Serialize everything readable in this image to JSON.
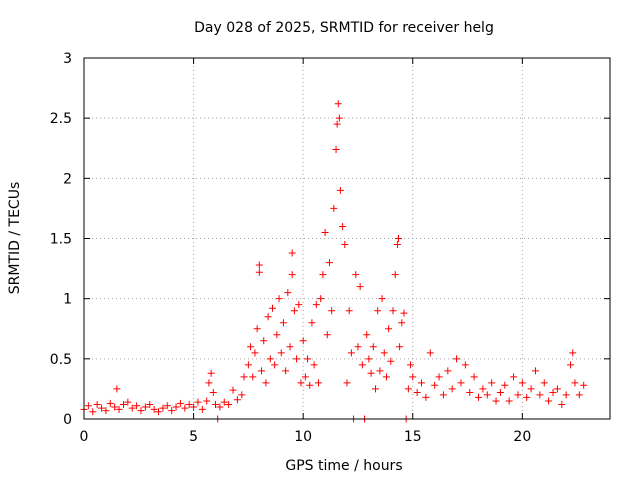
{
  "chart_data": {
    "type": "scatter",
    "title": "Day 028 of 2025, SRMTID for receiver helg",
    "xlabel": "GPS time / hours",
    "ylabel": "SRMTID / TECUs",
    "xlim": [
      0,
      24
    ],
    "ylim": [
      0,
      3
    ],
    "xticks": [
      0,
      5,
      10,
      15,
      20
    ],
    "xtick_labels": [
      "0",
      "5",
      "10",
      "15",
      "20"
    ],
    "yticks": [
      0,
      0.5,
      1,
      1.5,
      2,
      2.5,
      3
    ],
    "ytick_labels": [
      "0",
      "0.5",
      "1",
      "1.5",
      "2",
      "2.5",
      "3"
    ],
    "grid": true,
    "marker": "+",
    "series": [
      {
        "name": "SRMTID",
        "color": "#ff0000",
        "points": [
          [
            0.0,
            0.08
          ],
          [
            0.2,
            0.11
          ],
          [
            0.4,
            0.06
          ],
          [
            0.6,
            0.12
          ],
          [
            0.8,
            0.09
          ],
          [
            1.0,
            0.07
          ],
          [
            1.2,
            0.13
          ],
          [
            1.4,
            0.1
          ],
          [
            1.5,
            0.25
          ],
          [
            1.6,
            0.08
          ],
          [
            1.8,
            0.12
          ],
          [
            2.0,
            0.14
          ],
          [
            2.2,
            0.09
          ],
          [
            2.4,
            0.11
          ],
          [
            2.6,
            0.07
          ],
          [
            2.8,
            0.1
          ],
          [
            3.0,
            0.12
          ],
          [
            3.2,
            0.08
          ],
          [
            3.4,
            0.06
          ],
          [
            3.6,
            0.09
          ],
          [
            3.8,
            0.11
          ],
          [
            4.0,
            0.07
          ],
          [
            4.2,
            0.1
          ],
          [
            4.4,
            0.13
          ],
          [
            4.6,
            0.09
          ],
          [
            4.8,
            0.12
          ],
          [
            5.0,
            0.1
          ],
          [
            5.2,
            0.14
          ],
          [
            5.4,
            0.08
          ],
          [
            5.6,
            0.15
          ],
          [
            5.7,
            0.3
          ],
          [
            5.8,
            0.38
          ],
          [
            5.9,
            0.22
          ],
          [
            6.0,
            0.12
          ],
          [
            6.1,
            0.0
          ],
          [
            6.2,
            0.1
          ],
          [
            6.4,
            0.14
          ],
          [
            6.6,
            0.12
          ],
          [
            6.8,
            0.24
          ],
          [
            7.0,
            0.16
          ],
          [
            7.2,
            0.2
          ],
          [
            7.3,
            0.35
          ],
          [
            7.5,
            0.45
          ],
          [
            7.6,
            0.6
          ],
          [
            7.7,
            0.35
          ],
          [
            7.8,
            0.55
          ],
          [
            7.9,
            0.75
          ],
          [
            8.0,
            1.28
          ],
          [
            8.0,
            1.22
          ],
          [
            8.1,
            0.4
          ],
          [
            8.2,
            0.65
          ],
          [
            8.3,
            0.3
          ],
          [
            8.4,
            0.85
          ],
          [
            8.5,
            0.5
          ],
          [
            8.6,
            0.92
          ],
          [
            8.7,
            0.45
          ],
          [
            8.8,
            0.7
          ],
          [
            8.9,
            1.0
          ],
          [
            9.0,
            0.55
          ],
          [
            9.1,
            0.8
          ],
          [
            9.2,
            0.4
          ],
          [
            9.3,
            1.05
          ],
          [
            9.4,
            0.6
          ],
          [
            9.5,
            1.2
          ],
          [
            9.5,
            1.38
          ],
          [
            9.6,
            0.9
          ],
          [
            9.7,
            0.5
          ],
          [
            9.8,
            0.95
          ],
          [
            9.9,
            0.3
          ],
          [
            10.0,
            0.65
          ],
          [
            10.1,
            0.35
          ],
          [
            10.2,
            0.5
          ],
          [
            10.3,
            0.28
          ],
          [
            10.4,
            0.8
          ],
          [
            10.5,
            0.45
          ],
          [
            10.6,
            0.95
          ],
          [
            10.7,
            0.3
          ],
          [
            10.8,
            1.0
          ],
          [
            10.9,
            1.2
          ],
          [
            11.0,
            1.55
          ],
          [
            11.1,
            0.7
          ],
          [
            11.2,
            1.3
          ],
          [
            11.3,
            0.9
          ],
          [
            11.4,
            1.75
          ],
          [
            11.5,
            2.24
          ],
          [
            11.55,
            2.45
          ],
          [
            11.6,
            2.62
          ],
          [
            11.65,
            2.5
          ],
          [
            11.7,
            1.9
          ],
          [
            11.8,
            1.6
          ],
          [
            11.9,
            1.45
          ],
          [
            12.0,
            0.3
          ],
          [
            12.1,
            0.9
          ],
          [
            12.2,
            0.55
          ],
          [
            12.3,
            0.0
          ],
          [
            12.4,
            1.2
          ],
          [
            12.5,
            0.6
          ],
          [
            12.6,
            1.1
          ],
          [
            12.7,
            0.45
          ],
          [
            12.8,
            0.0
          ],
          [
            12.9,
            0.7
          ],
          [
            13.0,
            0.5
          ],
          [
            13.1,
            0.38
          ],
          [
            13.2,
            0.6
          ],
          [
            13.3,
            0.25
          ],
          [
            13.4,
            0.9
          ],
          [
            13.5,
            0.4
          ],
          [
            13.6,
            1.0
          ],
          [
            13.7,
            0.55
          ],
          [
            13.8,
            0.35
          ],
          [
            13.9,
            0.75
          ],
          [
            14.0,
            0.48
          ],
          [
            14.1,
            0.9
          ],
          [
            14.2,
            1.2
          ],
          [
            14.3,
            1.45
          ],
          [
            14.35,
            1.5
          ],
          [
            14.4,
            0.6
          ],
          [
            14.5,
            0.8
          ],
          [
            14.6,
            0.88
          ],
          [
            14.7,
            0.0
          ],
          [
            14.8,
            0.25
          ],
          [
            14.9,
            0.45
          ],
          [
            15.0,
            0.35
          ],
          [
            15.2,
            0.22
          ],
          [
            15.4,
            0.3
          ],
          [
            15.6,
            0.18
          ],
          [
            15.8,
            0.55
          ],
          [
            16.0,
            0.28
          ],
          [
            16.2,
            0.35
          ],
          [
            16.4,
            0.2
          ],
          [
            16.6,
            0.4
          ],
          [
            16.8,
            0.25
          ],
          [
            17.0,
            0.5
          ],
          [
            17.2,
            0.3
          ],
          [
            17.4,
            0.45
          ],
          [
            17.6,
            0.22
          ],
          [
            17.8,
            0.35
          ],
          [
            18.0,
            0.18
          ],
          [
            18.2,
            0.25
          ],
          [
            18.4,
            0.2
          ],
          [
            18.6,
            0.3
          ],
          [
            18.8,
            0.15
          ],
          [
            19.0,
            0.22
          ],
          [
            19.2,
            0.28
          ],
          [
            19.4,
            0.15
          ],
          [
            19.6,
            0.35
          ],
          [
            19.8,
            0.2
          ],
          [
            20.0,
            0.3
          ],
          [
            20.2,
            0.18
          ],
          [
            20.4,
            0.25
          ],
          [
            20.6,
            0.4
          ],
          [
            20.8,
            0.2
          ],
          [
            21.0,
            0.3
          ],
          [
            21.2,
            0.15
          ],
          [
            21.4,
            0.22
          ],
          [
            21.6,
            0.25
          ],
          [
            21.8,
            0.12
          ],
          [
            22.0,
            0.2
          ],
          [
            22.2,
            0.45
          ],
          [
            22.3,
            0.55
          ],
          [
            22.4,
            0.3
          ],
          [
            22.6,
            0.2
          ],
          [
            22.8,
            0.28
          ]
        ]
      }
    ]
  }
}
